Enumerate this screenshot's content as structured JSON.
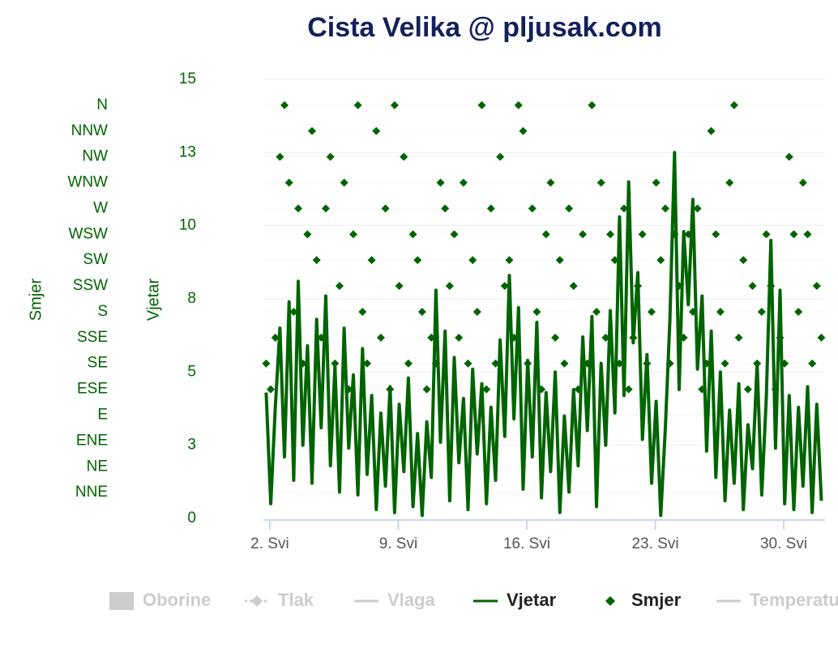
{
  "chart_data": {
    "type": "line",
    "title": "Cista Velika @ pljusak.com",
    "y_label": "Vjetar",
    "y2_label": "Smjer",
    "xlim": [
      1.65,
      32.25
    ],
    "xticks": [
      {
        "value": 2,
        "label": "2. Svi"
      },
      {
        "value": 9,
        "label": "9. Svi"
      },
      {
        "value": 16,
        "label": "16. Svi"
      },
      {
        "value": 23,
        "label": "23. Svi"
      },
      {
        "value": 30,
        "label": "30. Svi"
      }
    ],
    "ylim": [
      0,
      15
    ],
    "yticks": [
      0,
      {
        "value": 2.5,
        "label": "3"
      },
      5,
      {
        "value": 7.5,
        "label": "8"
      },
      10,
      {
        "value": 12.5,
        "label": "13"
      },
      15
    ],
    "y2lim": [
      0,
      17
    ],
    "y2ticks": [
      {
        "value": 1,
        "label": "NNE"
      },
      {
        "value": 2,
        "label": "NE"
      },
      {
        "value": 3,
        "label": "ENE"
      },
      {
        "value": 4,
        "label": "E"
      },
      {
        "value": 5,
        "label": "ESE"
      },
      {
        "value": 6,
        "label": "SE"
      },
      {
        "value": 7,
        "label": "SSE"
      },
      {
        "value": 8,
        "label": "S"
      },
      {
        "value": 9,
        "label": "SSW"
      },
      {
        "value": 10,
        "label": "SW"
      },
      {
        "value": 11,
        "label": "WSW"
      },
      {
        "value": 12,
        "label": "W"
      },
      {
        "value": 13,
        "label": "WNW"
      },
      {
        "value": 14,
        "label": "NW"
      },
      {
        "value": 15,
        "label": "NNW"
      },
      {
        "value": 16,
        "label": "N"
      }
    ],
    "grid": true,
    "x": [
      1.8,
      2.05,
      2.3,
      2.55,
      2.8,
      3.05,
      3.3,
      3.55,
      3.8,
      4.05,
      4.3,
      4.55,
      4.8,
      5.05,
      5.3,
      5.55,
      5.8,
      6.05,
      6.3,
      6.55,
      6.8,
      7.05,
      7.3,
      7.55,
      7.8,
      8.05,
      8.3,
      8.55,
      8.8,
      9.05,
      9.3,
      9.55,
      9.8,
      10.05,
      10.3,
      10.55,
      10.8,
      11.05,
      11.3,
      11.55,
      11.8,
      12.05,
      12.3,
      12.55,
      12.8,
      13.05,
      13.3,
      13.55,
      13.8,
      14.05,
      14.3,
      14.55,
      14.8,
      15.05,
      15.3,
      15.55,
      15.8,
      16.05,
      16.3,
      16.55,
      16.8,
      17.05,
      17.3,
      17.55,
      17.8,
      18.05,
      18.3,
      18.55,
      18.8,
      19.05,
      19.3,
      19.55,
      19.8,
      20.05,
      20.3,
      20.55,
      20.8,
      21.05,
      21.3,
      21.55,
      21.8,
      22.05,
      22.3,
      22.55,
      22.8,
      23.05,
      23.3,
      23.55,
      23.8,
      24.05,
      24.3,
      24.55,
      24.8,
      25.05,
      25.3,
      25.55,
      25.8,
      26.05,
      26.3,
      26.55,
      26.8,
      27.05,
      27.3,
      27.55,
      27.8,
      28.05,
      28.3,
      28.55,
      28.8,
      29.05,
      29.3,
      29.55,
      29.8,
      30.05,
      30.3,
      30.55,
      30.8,
      31.05,
      31.3,
      31.55,
      31.8,
      32.05
    ],
    "series": [
      {
        "name": "Vjetar",
        "type": "line",
        "color": "#006400",
        "values": [
          4.3,
          0.5,
          3.8,
          6.5,
          2.1,
          7.4,
          1.3,
          8.1,
          2.5,
          5.9,
          1.2,
          6.8,
          3.1,
          7.6,
          1.8,
          5.2,
          0.9,
          6.5,
          2.4,
          4.9,
          0.8,
          5.8,
          1.5,
          4.2,
          0.3,
          3.6,
          1.1,
          4.5,
          0.2,
          3.9,
          1.6,
          4.8,
          0.4,
          2.9,
          0.1,
          3.3,
          1.4,
          7.8,
          2.6,
          6.4,
          0.6,
          5.5,
          1.9,
          4.1,
          0.3,
          5.1,
          2.2,
          4.6,
          0.5,
          3.8,
          1.3,
          6.1,
          2.8,
          8.3,
          3.4,
          7.2,
          1.0,
          5.4,
          2.1,
          6.7,
          0.7,
          4.3,
          1.6,
          5.0,
          0.2,
          3.5,
          0.9,
          4.4,
          1.8,
          6.2,
          3.0,
          6.9,
          0.4,
          5.3,
          2.5,
          7.1,
          3.6,
          10.3,
          4.2,
          11.5,
          6.0,
          8.4,
          2.7,
          5.6,
          1.2,
          4.0,
          0.1,
          3.1,
          6.8,
          12.5,
          4.4,
          9.8,
          7.3,
          10.9,
          5.1,
          7.6,
          2.3,
          6.4,
          1.4,
          5.0,
          0.6,
          3.7,
          1.2,
          4.6,
          0.3,
          3.2,
          1.7,
          5.3,
          0.8,
          4.1,
          9.5,
          2.4,
          7.8,
          0.5,
          4.2,
          0.3,
          3.8,
          1.1,
          4.5,
          0.2,
          3.9,
          0.6
        ]
      },
      {
        "name": "Smjer",
        "type": "scatter",
        "axis": "y2",
        "color": "#006400",
        "values": [
          6,
          5,
          7,
          14,
          16,
          13,
          8,
          12,
          6,
          11,
          15,
          10,
          7,
          12,
          14,
          6,
          9,
          13,
          5,
          11,
          16,
          8,
          6,
          10,
          15,
          7,
          12,
          5,
          16,
          9,
          14,
          6,
          11,
          10,
          8,
          5,
          7,
          6,
          13,
          12,
          9,
          11,
          7,
          13,
          6,
          10,
          8,
          16,
          5,
          12,
          6,
          14,
          9,
          10,
          7,
          16,
          15,
          6,
          12,
          8,
          5,
          11,
          13,
          7,
          10,
          6,
          12,
          9,
          5,
          11,
          6,
          16,
          8,
          13,
          7,
          11,
          10,
          6,
          12,
          5,
          7,
          9,
          11,
          6,
          8,
          13,
          10,
          12,
          6,
          11,
          9,
          7,
          11,
          8,
          12,
          5,
          6,
          15,
          11,
          8,
          6,
          13,
          16,
          7,
          10,
          5,
          9,
          6,
          8,
          11,
          9,
          5,
          7,
          6,
          14,
          11,
          8,
          13,
          11,
          6,
          9,
          7
        ]
      }
    ],
    "hidden_series": [
      {
        "name": "Oborine",
        "symbol": "column"
      },
      {
        "name": "Tlak",
        "symbol": "dashed-diamond"
      },
      {
        "name": "Vlaga",
        "symbol": "line"
      },
      {
        "name": "Temperatura",
        "symbol": "line"
      }
    ],
    "hidden_color": "#cccccc"
  }
}
